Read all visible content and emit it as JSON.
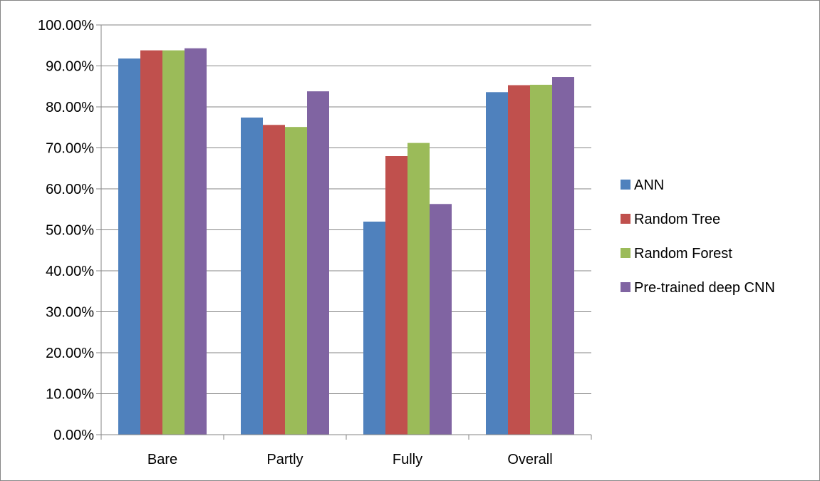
{
  "chart_data": {
    "type": "bar",
    "categories": [
      "Bare",
      "Partly",
      "Fully",
      "Overall"
    ],
    "series": [
      {
        "name": "ANN",
        "color": "#4F81BD",
        "values": [
          91.8,
          77.4,
          52.0,
          83.6
        ]
      },
      {
        "name": "Random Tree",
        "color": "#C0504D",
        "values": [
          93.8,
          75.6,
          68.0,
          85.3
        ]
      },
      {
        "name": "Random Forest",
        "color": "#9BBB59",
        "values": [
          93.8,
          75.1,
          71.2,
          85.4
        ]
      },
      {
        "name": "Pre-trained deep CNN",
        "color": "#8064A2",
        "values": [
          94.3,
          83.8,
          56.3,
          87.3
        ]
      }
    ],
    "y_ticks": [
      "0.00%",
      "10.00%",
      "20.00%",
      "30.00%",
      "40.00%",
      "50.00%",
      "60.00%",
      "70.00%",
      "80.00%",
      "90.00%",
      "100.00%"
    ],
    "ylim": [
      0,
      100
    ],
    "y_unit": "percent",
    "grid": true,
    "legend_position": "right"
  }
}
